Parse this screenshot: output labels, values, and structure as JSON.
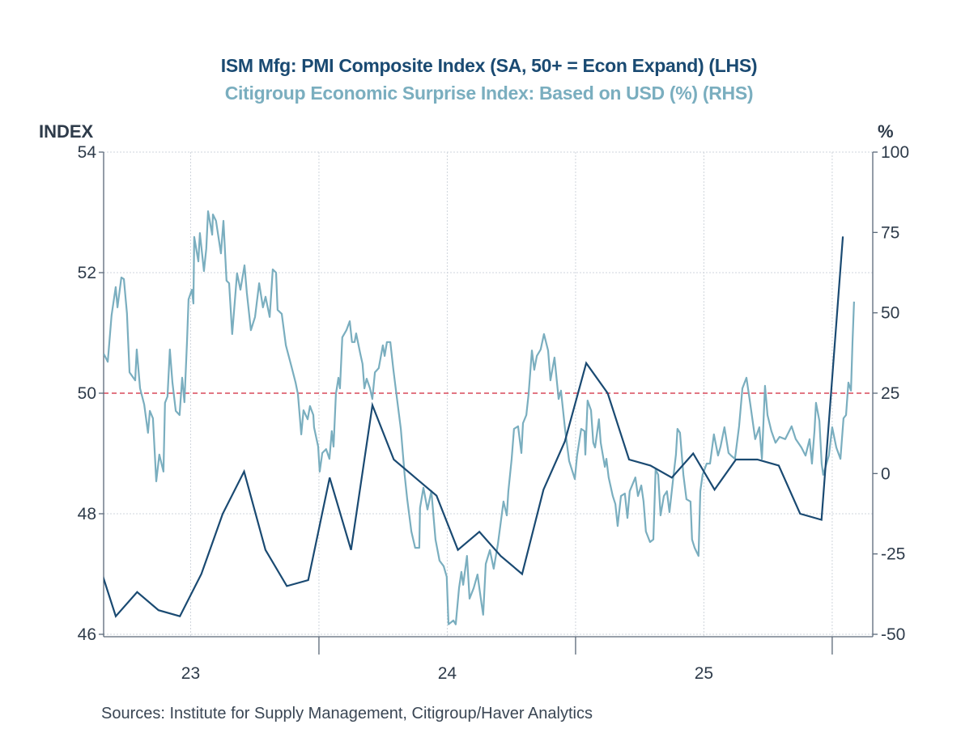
{
  "chart_data": {
    "type": "line",
    "title": "ISM Mfg: PMI Composite Index (SA, 50+ = Econ Expand) (LHS)",
    "subtitle": "Citigroup Economic Surprise Index: Based on USD (%) (RHS)",
    "ylabel": "INDEX",
    "y2label": "%",
    "ylim": [
      46,
      54
    ],
    "y2lim": [
      -50,
      100
    ],
    "yticks": [
      "54",
      "52",
      "50",
      "48",
      "46"
    ],
    "y2ticks": [
      "100",
      "75",
      "50",
      "25",
      "0",
      "-25",
      "-50"
    ],
    "xlim": [
      2023.161,
      2026.158
    ],
    "xticklabels": [
      {
        "label": "23",
        "year": 2023
      },
      {
        "label": "24",
        "year": 2024
      },
      {
        "label": "25",
        "year": 2025
      }
    ],
    "reference_line": {
      "axis": "left",
      "value": 50,
      "color": "#d9485a"
    },
    "grid": true,
    "source": "Sources:  Institute for Supply Management, Citigroup/Haver Analytics",
    "series": [
      {
        "name": "ISM Mfg: PMI Composite Index (SA, 50+ = Econ Expand)",
        "axis": "left",
        "color": "#1a4a72",
        "frequency": "monthly",
        "dates": [
          "2023-02",
          "2023-03",
          "2023-04",
          "2023-05",
          "2023-06",
          "2023-07",
          "2023-08",
          "2023-09",
          "2023-10",
          "2023-11",
          "2023-12",
          "2024-01",
          "2024-02",
          "2024-03",
          "2024-04",
          "2024-05",
          "2024-06",
          "2024-07",
          "2024-08",
          "2024-09",
          "2024-10",
          "2024-11",
          "2024-12",
          "2025-01",
          "2025-02",
          "2025-03",
          "2025-04",
          "2025-05",
          "2025-06",
          "2025-07",
          "2025-08",
          "2025-09",
          "2025-10",
          "2025-11",
          "2025-12",
          "2026-01"
        ],
        "values": [
          47.4,
          46.3,
          46.7,
          46.4,
          46.3,
          47.0,
          48.0,
          48.7,
          47.4,
          46.8,
          46.9,
          48.6,
          47.4,
          49.8,
          48.9,
          48.6,
          48.3,
          47.4,
          47.7,
          47.3,
          47.0,
          48.4,
          49.2,
          50.5,
          50.0,
          48.9,
          48.8,
          48.6,
          49.0,
          48.4,
          48.9,
          48.9,
          48.8,
          48.0,
          47.9,
          52.6
        ]
      },
      {
        "name": "Citigroup Economic Surprise Index: Based on USD (%)",
        "axis": "right",
        "color": "#7aaebf",
        "frequency": "daily (sampled)",
        "points": [
          [
            2023.161,
            37.3
          ],
          [
            2023.177,
            34.8
          ],
          [
            2023.192,
            49.2
          ],
          [
            2023.208,
            58.0
          ],
          [
            2023.215,
            51.7
          ],
          [
            2023.23,
            61.0
          ],
          [
            2023.24,
            60.5
          ],
          [
            2023.252,
            49.9
          ],
          [
            2023.262,
            31.5
          ],
          [
            2023.284,
            29.0
          ],
          [
            2023.29,
            38.6
          ],
          [
            2023.303,
            26.5
          ],
          [
            2023.319,
            21.5
          ],
          [
            2023.334,
            12.7
          ],
          [
            2023.341,
            19.5
          ],
          [
            2023.353,
            17.2
          ],
          [
            2023.366,
            -2.4
          ],
          [
            2023.378,
            5.9
          ],
          [
            2023.394,
            0.6
          ],
          [
            2023.4,
            22.0
          ],
          [
            2023.41,
            24.0
          ],
          [
            2023.419,
            38.6
          ],
          [
            2023.429,
            28.3
          ],
          [
            2023.442,
            19.5
          ],
          [
            2023.457,
            18.2
          ],
          [
            2023.467,
            29.8
          ],
          [
            2023.476,
            22.2
          ],
          [
            2023.486,
            41.1
          ],
          [
            2023.492,
            54.2
          ],
          [
            2023.505,
            57.2
          ],
          [
            2023.511,
            52.9
          ],
          [
            2023.514,
            73.6
          ],
          [
            2023.53,
            66.0
          ],
          [
            2023.536,
            74.8
          ],
          [
            2023.552,
            63.0
          ],
          [
            2023.561,
            70.0
          ],
          [
            2023.568,
            81.6
          ],
          [
            2023.584,
            74.3
          ],
          [
            2023.587,
            80.6
          ],
          [
            2023.599,
            78.6
          ],
          [
            2023.618,
            68.5
          ],
          [
            2023.628,
            78.6
          ],
          [
            2023.64,
            60.0
          ],
          [
            2023.65,
            59.2
          ],
          [
            2023.662,
            43.4
          ],
          [
            2023.681,
            62.3
          ],
          [
            2023.694,
            57.2
          ],
          [
            2023.71,
            64.8
          ],
          [
            2023.719,
            56.2
          ],
          [
            2023.735,
            44.6
          ],
          [
            2023.751,
            48.7
          ],
          [
            2023.767,
            59.2
          ],
          [
            2023.782,
            51.7
          ],
          [
            2023.792,
            55.0
          ],
          [
            2023.808,
            48.7
          ],
          [
            2023.82,
            63.5
          ],
          [
            2023.833,
            62.5
          ],
          [
            2023.839,
            50.9
          ],
          [
            2023.855,
            49.7
          ],
          [
            2023.871,
            39.9
          ],
          [
            2023.893,
            33.3
          ],
          [
            2023.909,
            28.3
          ],
          [
            2023.918,
            24.7
          ],
          [
            2023.931,
            12.2
          ],
          [
            2023.94,
            19.7
          ],
          [
            2023.956,
            16.9
          ],
          [
            2023.965,
            21.0
          ],
          [
            2023.978,
            18.2
          ],
          [
            2023.981,
            14.4
          ],
          [
            2023.997,
            8.4
          ],
          [
            2024.003,
            0.6
          ],
          [
            2024.013,
            6.4
          ],
          [
            2024.028,
            7.6
          ],
          [
            2024.041,
            4.6
          ],
          [
            2024.05,
            13.2
          ],
          [
            2024.057,
            8.4
          ],
          [
            2024.066,
            24.7
          ],
          [
            2024.076,
            29.8
          ],
          [
            2024.082,
            26.5
          ],
          [
            2024.091,
            42.4
          ],
          [
            2024.107,
            44.6
          ],
          [
            2024.12,
            47.4
          ],
          [
            2024.129,
            40.9
          ],
          [
            2024.139,
            40.9
          ],
          [
            2024.145,
            43.6
          ],
          [
            2024.161,
            37.3
          ],
          [
            2024.17,
            34.1
          ],
          [
            2024.177,
            26.5
          ],
          [
            2024.186,
            29.5
          ],
          [
            2024.199,
            26.5
          ],
          [
            2024.208,
            23.2
          ],
          [
            2024.218,
            31.5
          ],
          [
            2024.233,
            32.8
          ],
          [
            2024.249,
            39.9
          ],
          [
            2024.256,
            36.6
          ],
          [
            2024.265,
            40.9
          ],
          [
            2024.278,
            40.9
          ],
          [
            2024.29,
            32.3
          ],
          [
            2024.303,
            24.0
          ],
          [
            2024.319,
            13.9
          ],
          [
            2024.334,
            -0.4
          ],
          [
            2024.344,
            -8.0
          ],
          [
            2024.36,
            -18.0
          ],
          [
            2024.375,
            -23.1
          ],
          [
            2024.391,
            -23.1
          ],
          [
            2024.394,
            -10.7
          ],
          [
            2024.407,
            -4.4
          ],
          [
            2024.423,
            -11.2
          ],
          [
            2024.438,
            -5.4
          ],
          [
            2024.454,
            -20.5
          ],
          [
            2024.47,
            -27.1
          ],
          [
            2024.486,
            -28.8
          ],
          [
            2024.498,
            -32.1
          ],
          [
            2024.505,
            -46.9
          ],
          [
            2024.524,
            -45.7
          ],
          [
            2024.533,
            -46.9
          ],
          [
            2024.546,
            -35.6
          ],
          [
            2024.555,
            -30.6
          ],
          [
            2024.562,
            -34.6
          ],
          [
            2024.577,
            -25.6
          ],
          [
            2024.587,
            -38.9
          ],
          [
            2024.603,
            -35.6
          ],
          [
            2024.618,
            -31.4
          ],
          [
            2024.634,
            -40.7
          ],
          [
            2024.64,
            -43.9
          ],
          [
            2024.65,
            -28.1
          ],
          [
            2024.666,
            -23.8
          ],
          [
            2024.681,
            -29.6
          ],
          [
            2024.697,
            -22.1
          ],
          [
            2024.719,
            -8.7
          ],
          [
            2024.732,
            -13.0
          ],
          [
            2024.738,
            -5.5
          ],
          [
            2024.751,
            4.6
          ],
          [
            2024.76,
            13.9
          ],
          [
            2024.776,
            14.7
          ],
          [
            2024.789,
            6.4
          ],
          [
            2024.795,
            15.7
          ],
          [
            2024.808,
            18.2
          ],
          [
            2024.817,
            24.7
          ],
          [
            2024.83,
            38.3
          ],
          [
            2024.839,
            32.3
          ],
          [
            2024.849,
            36.6
          ],
          [
            2024.864,
            38.6
          ],
          [
            2024.877,
            43.4
          ],
          [
            2024.893,
            38.3
          ],
          [
            2024.902,
            29.0
          ],
          [
            2024.918,
            36.1
          ],
          [
            2024.934,
            23.2
          ],
          [
            2024.943,
            25.8
          ],
          [
            2024.959,
            13.9
          ],
          [
            2024.975,
            3.9
          ],
          [
            2024.997,
            -1.7
          ],
          [
            2025.006,
            5.6
          ],
          [
            2025.022,
            13.9
          ],
          [
            2025.035,
            13.2
          ],
          [
            2025.038,
            5.9
          ],
          [
            2025.047,
            22.7
          ],
          [
            2025.06,
            19.7
          ],
          [
            2025.069,
            9.6
          ],
          [
            2025.076,
            8.1
          ],
          [
            2025.091,
            16.9
          ],
          [
            2025.098,
            9.6
          ],
          [
            2025.114,
            2.1
          ],
          [
            2025.12,
            4.6
          ],
          [
            2025.129,
            -1.2
          ],
          [
            2025.145,
            -7.0
          ],
          [
            2025.155,
            -9.5
          ],
          [
            2025.164,
            -16.3
          ],
          [
            2025.177,
            -7.0
          ],
          [
            2025.192,
            -6.2
          ],
          [
            2025.202,
            -13.8
          ],
          [
            2025.211,
            -5.5
          ],
          [
            2025.233,
            -1.2
          ],
          [
            2025.243,
            -7.0
          ],
          [
            2025.256,
            -3.7
          ],
          [
            2025.265,
            -8.7
          ],
          [
            2025.274,
            -18.0
          ],
          [
            2025.29,
            -21.3
          ],
          [
            2025.303,
            -20.5
          ],
          [
            2025.312,
            1.3
          ],
          [
            2025.322,
            -0.4
          ],
          [
            2025.331,
            -13.0
          ],
          [
            2025.344,
            -7.0
          ],
          [
            2025.356,
            -5.5
          ],
          [
            2025.366,
            -12.0
          ],
          [
            2025.382,
            -0.4
          ],
          [
            2025.391,
            5.9
          ],
          [
            2025.397,
            13.9
          ],
          [
            2025.407,
            12.7
          ],
          [
            2025.42,
            -0.4
          ],
          [
            2025.432,
            -8.0
          ],
          [
            2025.448,
            -8.7
          ],
          [
            2025.454,
            -20.5
          ],
          [
            2025.464,
            -23.1
          ],
          [
            2025.479,
            -25.6
          ],
          [
            2025.486,
            -5.5
          ],
          [
            2025.495,
            -0.4
          ],
          [
            2025.511,
            3.1
          ],
          [
            2025.524,
            3.1
          ],
          [
            2025.539,
            12.2
          ],
          [
            2025.555,
            5.6
          ],
          [
            2025.565,
            8.4
          ],
          [
            2025.58,
            14.4
          ],
          [
            2025.596,
            6.4
          ],
          [
            2025.606,
            5.6
          ],
          [
            2025.621,
            4.6
          ],
          [
            2025.637,
            14.7
          ],
          [
            2025.65,
            26.5
          ],
          [
            2025.666,
            29.8
          ],
          [
            2025.681,
            21.5
          ],
          [
            2025.7,
            10.7
          ],
          [
            2025.716,
            14.4
          ],
          [
            2025.726,
            4.6
          ],
          [
            2025.738,
            27.3
          ],
          [
            2025.748,
            18.2
          ],
          [
            2025.763,
            13.2
          ],
          [
            2025.779,
            9.6
          ],
          [
            2025.795,
            11.4
          ],
          [
            2025.817,
            10.7
          ],
          [
            2025.842,
            14.7
          ],
          [
            2025.858,
            10.7
          ],
          [
            2025.88,
            8.1
          ],
          [
            2025.896,
            5.6
          ],
          [
            2025.912,
            10.7
          ],
          [
            2025.921,
            3.1
          ],
          [
            2025.931,
            13.2
          ],
          [
            2025.937,
            22.0
          ],
          [
            2025.95,
            16.4
          ],
          [
            2025.959,
            3.1
          ],
          [
            2025.965,
            -0.4
          ],
          [
            2025.987,
            5.6
          ],
          [
            2026.0,
            14.4
          ],
          [
            2026.016,
            8.1
          ],
          [
            2026.032,
            4.6
          ],
          [
            2026.044,
            17.2
          ],
          [
            2026.054,
            18.2
          ],
          [
            2026.063,
            28.3
          ],
          [
            2026.073,
            25.8
          ],
          [
            2026.079,
            40.9
          ],
          [
            2026.085,
            53.5
          ]
        ]
      }
    ]
  }
}
